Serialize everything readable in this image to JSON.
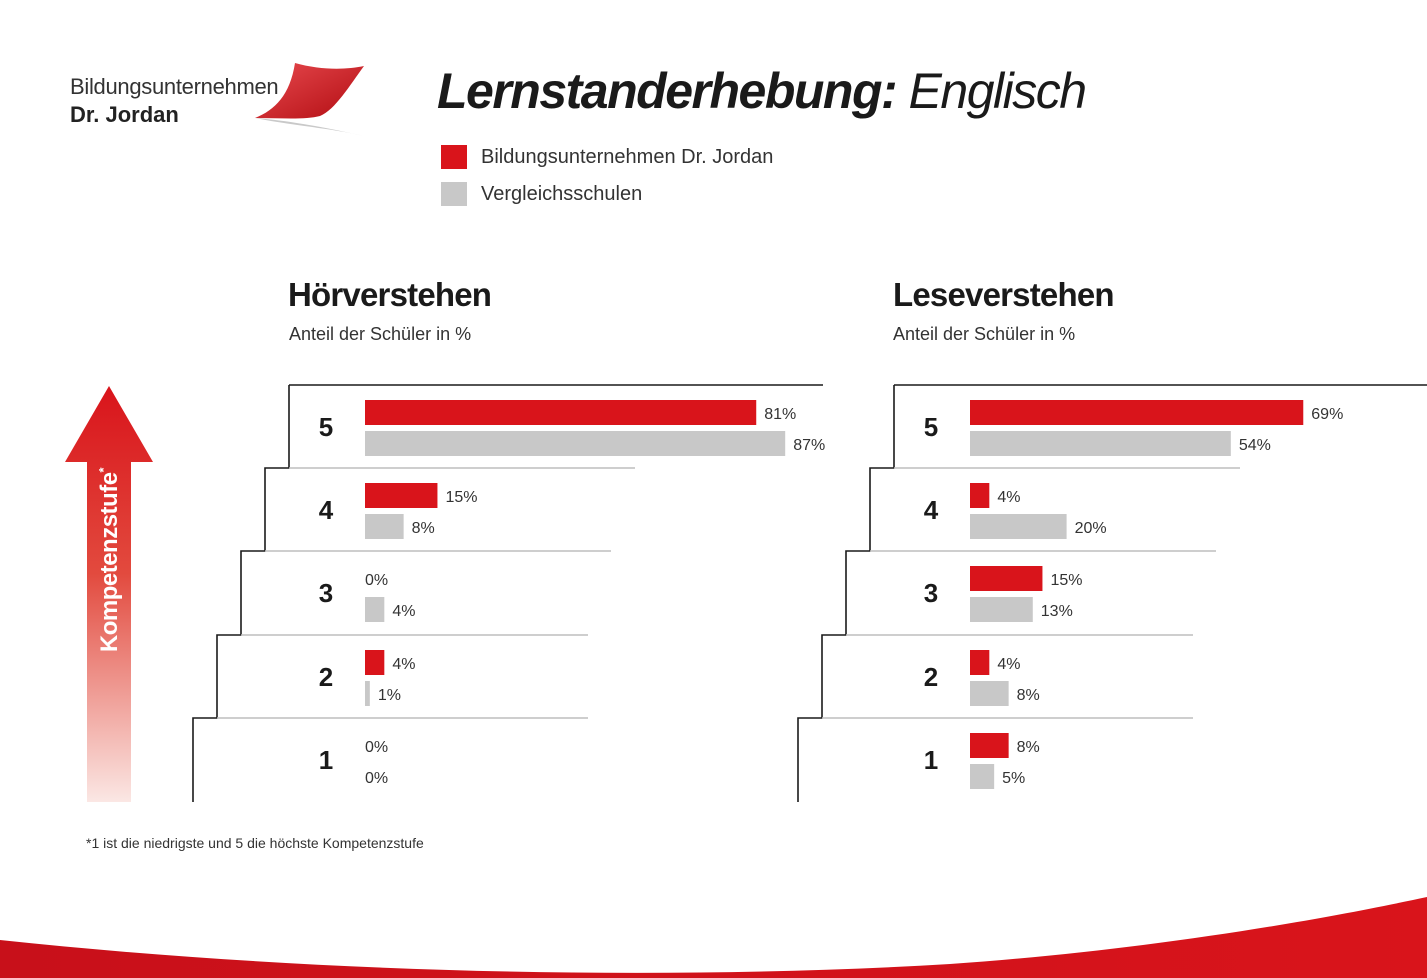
{
  "logo": {
    "line1": "Bildungsunternehmen",
    "line2": "Dr. Jordan"
  },
  "title": {
    "bold": "Lernstanderhebung:",
    "light": "Englisch"
  },
  "legend": [
    {
      "label": "Bildungsunternehmen Dr. Jordan",
      "color": "#d9141b"
    },
    {
      "label": "Vergleichsschulen",
      "color": "#c8c8c8"
    }
  ],
  "axis_label": "Kompetenzstufe",
  "axis_marker": "*",
  "footnote": "*1 ist die niedrigste und 5 die höchste Kompetenzstufe",
  "chart_data": [
    {
      "type": "bar",
      "title": "Hörverstehen",
      "subtitle": "Anteil der Schüler in %",
      "categories": [
        "5",
        "4",
        "3",
        "2",
        "1"
      ],
      "series": [
        {
          "name": "Bildungsunternehmen Dr. Jordan",
          "color": "#d9141b",
          "values": [
            81,
            15,
            0,
            4,
            0
          ],
          "labels": [
            "81%",
            "15%",
            "0%",
            "4%",
            "0%"
          ]
        },
        {
          "name": "Vergleichsschulen",
          "color": "#c8c8c8",
          "values": [
            87,
            8,
            4,
            1,
            0
          ],
          "labels": [
            "87%",
            "8%",
            "4%",
            "1%",
            "0%"
          ]
        }
      ]
    },
    {
      "type": "bar",
      "title": "Leseverstehen",
      "subtitle": "Anteil der Schüler in %",
      "categories": [
        "5",
        "4",
        "3",
        "2",
        "1"
      ],
      "series": [
        {
          "name": "Bildungsunternehmen Dr. Jordan",
          "color": "#d9141b",
          "values": [
            69,
            4,
            15,
            4,
            8
          ],
          "labels": [
            "69%",
            "4%",
            "15%",
            "4%",
            "8%"
          ]
        },
        {
          "name": "Vergleichsschulen",
          "color": "#c8c8c8",
          "values": [
            54,
            20,
            13,
            8,
            5
          ],
          "labels": [
            "54%",
            "20%",
            "13%",
            "8%",
            "5%"
          ]
        }
      ]
    }
  ]
}
